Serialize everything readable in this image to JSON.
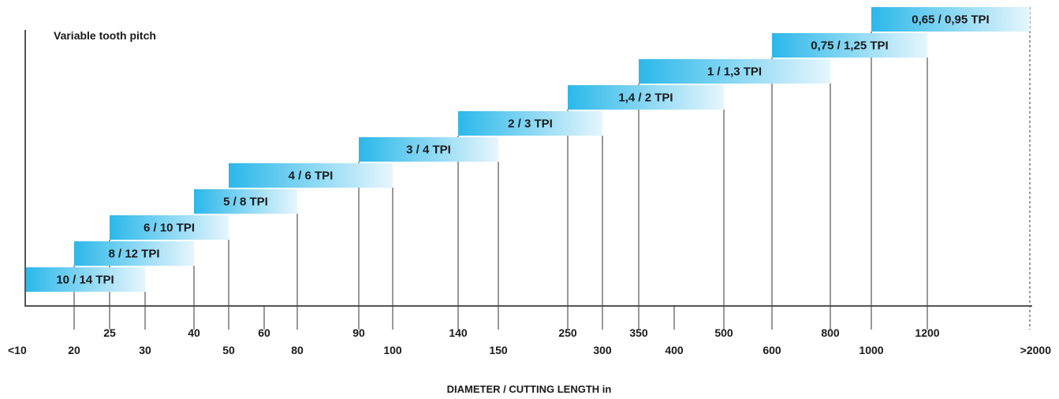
{
  "chart_data": {
    "type": "bar",
    "subtype": "range-staircase",
    "title": "Variable tooth pitch",
    "xlabel": "DIAMETER / CUTTING LENGTH in",
    "ylabel": "",
    "grid": false,
    "legend": "none",
    "colors": {
      "bar_start": "#2bb8ea",
      "bar_end": "#e6f6fd",
      "axis": "#555555",
      "tick": "#333333",
      "text": "#1a1a1a"
    },
    "ticks": [
      {
        "label": "<10",
        "row": "lower",
        "line": false
      },
      {
        "label": "20",
        "row": "lower",
        "line": true
      },
      {
        "label": "25",
        "row": "upper",
        "line": true
      },
      {
        "label": "30",
        "row": "lower",
        "line": true
      },
      {
        "label": "40",
        "row": "upper",
        "line": true
      },
      {
        "label": "50",
        "row": "lower",
        "line": true
      },
      {
        "label": "60",
        "row": "upper",
        "line": true
      },
      {
        "label": "80",
        "row": "lower",
        "line": true
      },
      {
        "label": "90",
        "row": "upper",
        "line": true
      },
      {
        "label": "100",
        "row": "lower",
        "line": true
      },
      {
        "label": "140",
        "row": "upper",
        "line": true
      },
      {
        "label": "150",
        "row": "lower",
        "line": true
      },
      {
        "label": "250",
        "row": "upper",
        "line": true
      },
      {
        "label": "300",
        "row": "lower",
        "line": true
      },
      {
        "label": "350",
        "row": "upper",
        "line": true
      },
      {
        "label": "400",
        "row": "lower",
        "line": true
      },
      {
        "label": "500",
        "row": "upper",
        "line": true
      },
      {
        "label": "600",
        "row": "lower",
        "line": true
      },
      {
        "label": "800",
        "row": "upper",
        "line": true
      },
      {
        "label": "1000",
        "row": "lower",
        "line": true
      },
      {
        "label": "1200",
        "row": "upper",
        "line": true
      },
      {
        "label": ">2000",
        "row": "lower",
        "line": "dashed"
      }
    ],
    "bars": [
      {
        "label": "10 / 14 TPI",
        "from": "<10",
        "to": "30"
      },
      {
        "label": "8 / 12 TPI",
        "from": "20",
        "to": "40"
      },
      {
        "label": "6 / 10 TPI",
        "from": "25",
        "to": "50"
      },
      {
        "label": "5 / 8 TPI",
        "from": "40",
        "to": "80"
      },
      {
        "label": "4 / 6 TPI",
        "from": "50",
        "to": "100"
      },
      {
        "label": "3 / 4 TPI",
        "from": "90",
        "to": "150"
      },
      {
        "label": "2 / 3 TPI",
        "from": "140",
        "to": "300"
      },
      {
        "label": "1,4 / 2 TPI",
        "from": "250",
        "to": "500"
      },
      {
        "label": "1 / 1,3 TPI",
        "from": "350",
        "to": "800"
      },
      {
        "label": "0,75 / 1,25 TPI",
        "from": "600",
        "to": "1200"
      },
      {
        "label": "0,65 / 0,95 TPI",
        "from": "1000",
        "to": ">2000"
      }
    ]
  }
}
